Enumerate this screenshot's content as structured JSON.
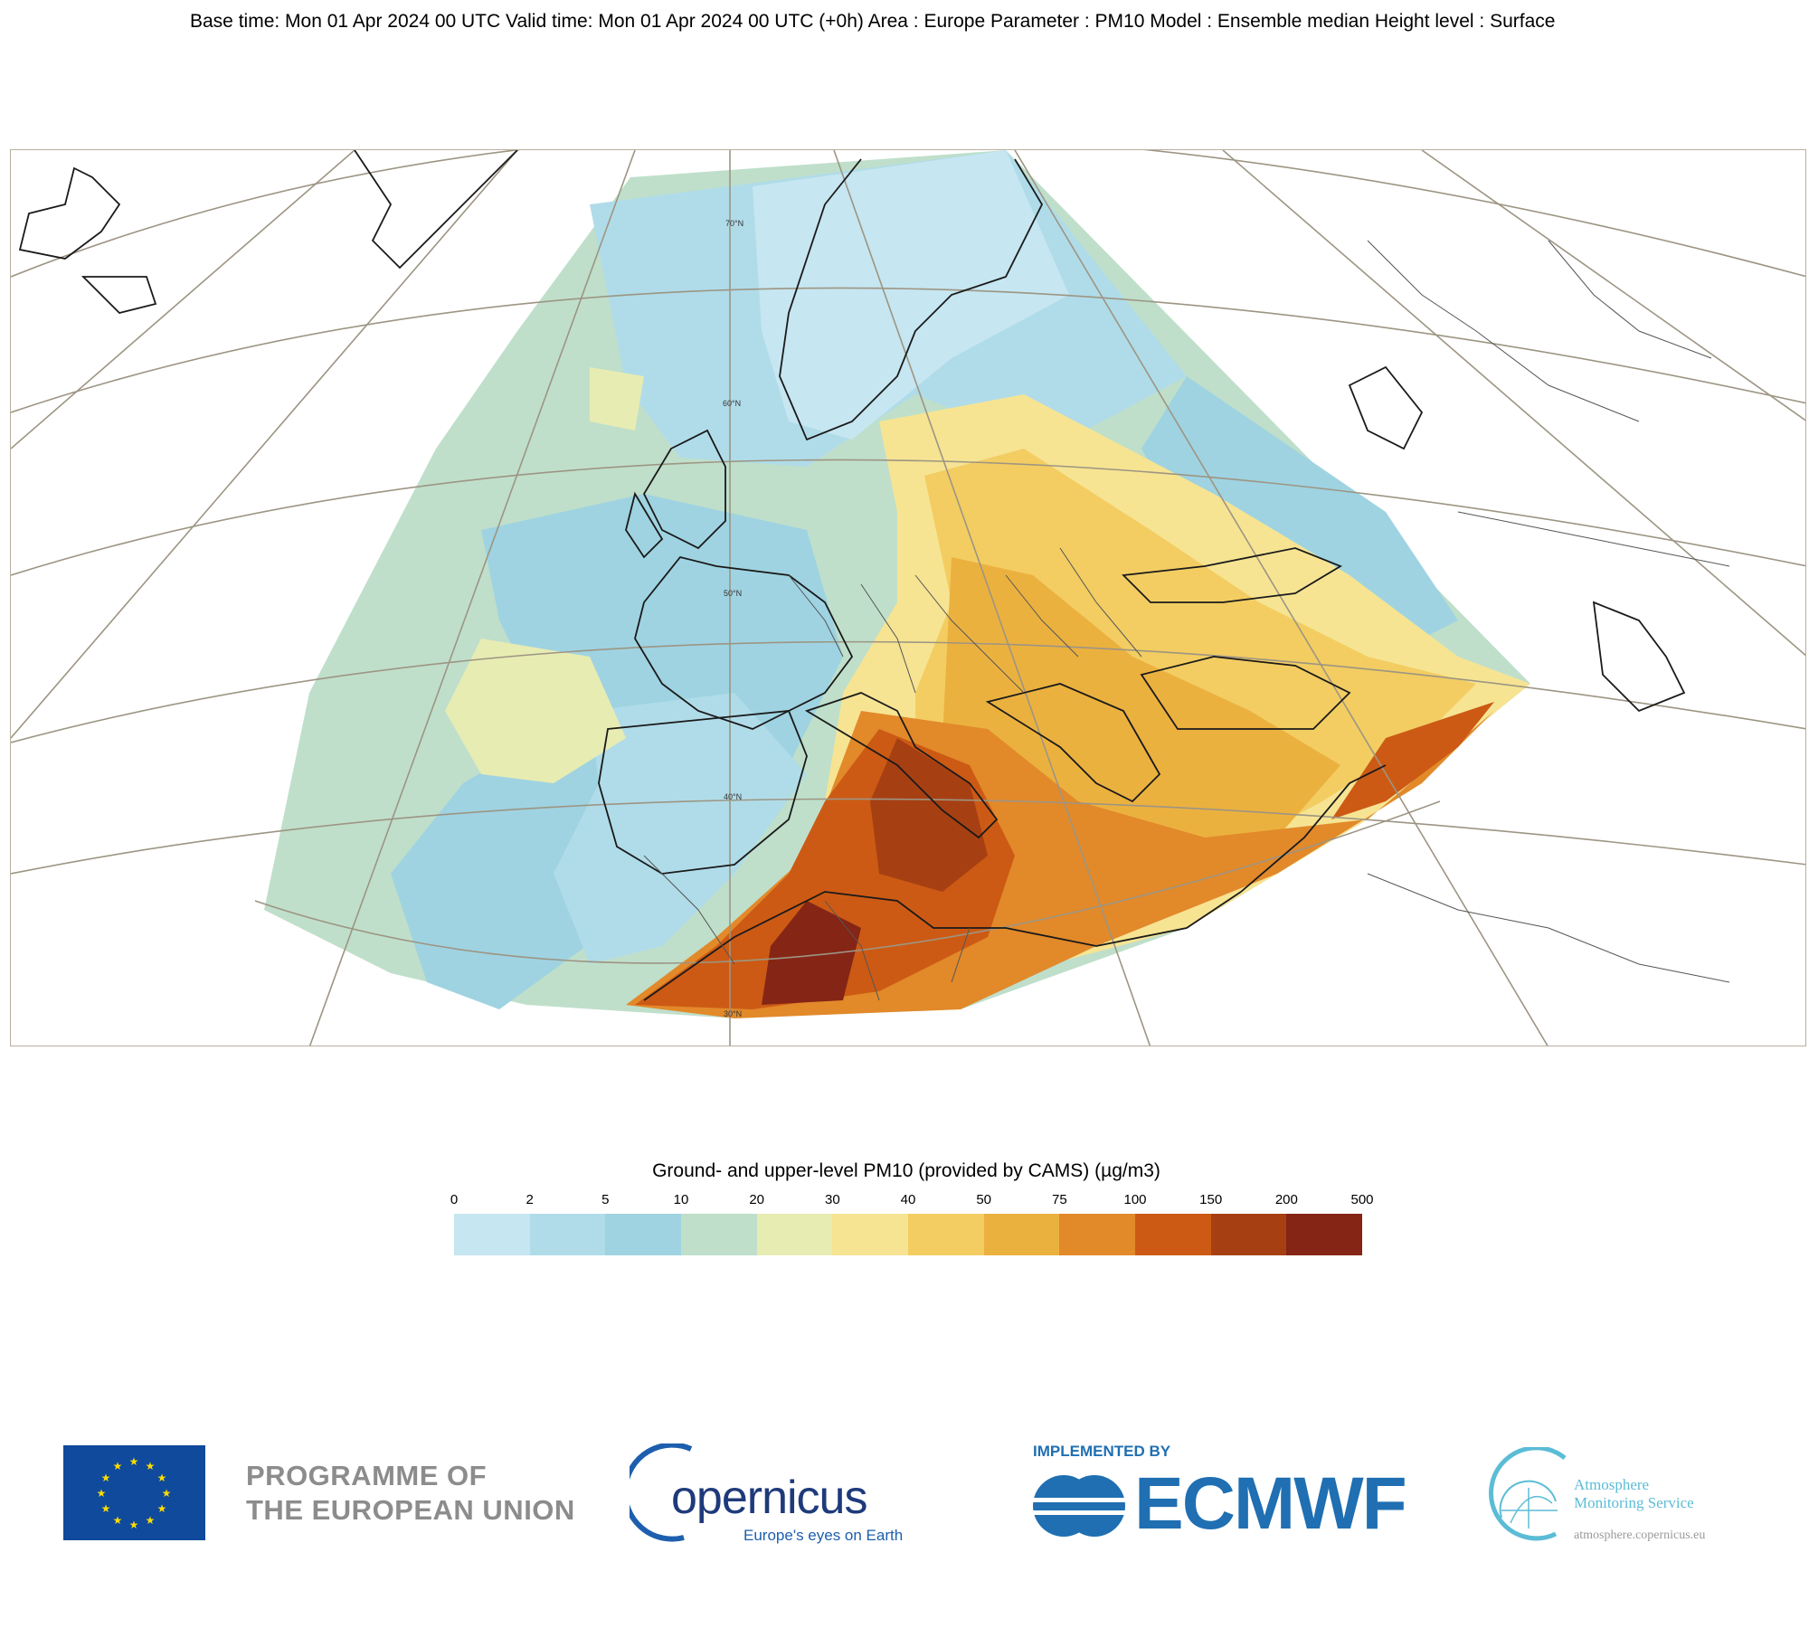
{
  "header": {
    "text": "Base time: Mon 01 Apr 2024 00 UTC Valid time: Mon 01 Apr 2024 00 UTC (+0h) Area : Europe Parameter : PM10 Model : Ensemble median Height level : Surface"
  },
  "map": {
    "latitude_labels": [
      "70°N",
      "60°N",
      "50°N",
      "40°N",
      "30°N"
    ],
    "concentration_pattern": "Low PM10 (2-20) over North Atlantic, Scandinavia and Western Europe; 30-75 over Central/Eastern Europe, Balkans and Turkey; 100-500 over Sahara desert dust plume extending over Tyrrhenian Sea and North Africa"
  },
  "legend": {
    "title": "Ground- and upper-level PM10 (provided by CAMS) (µg/m3)",
    "ticks": [
      "0",
      "2",
      "5",
      "10",
      "20",
      "30",
      "40",
      "50",
      "75",
      "100",
      "150",
      "200",
      "500"
    ],
    "colors": [
      "#c6e6f1",
      "#b0dce9",
      "#9fd3e1",
      "#bfdfcb",
      "#e7ecb3",
      "#f6e493",
      "#f3cd62",
      "#ebb13f",
      "#e2892a",
      "#cc5a14",
      "#a64013",
      "#852516"
    ]
  },
  "footer": {
    "eu_line1": "PROGRAMME OF",
    "eu_line2": "THE EUROPEAN UNION",
    "copernicus_word": "opernicus",
    "copernicus_tagline": "Europe's eyes on Earth",
    "ecmwf_implemented": "IMPLEMENTED BY",
    "ecmwf_word": "ECMWF",
    "ams_line1": "Atmosphere",
    "ams_line2": "Monitoring Service",
    "ams_url": "atmosphere.copernicus.eu"
  }
}
